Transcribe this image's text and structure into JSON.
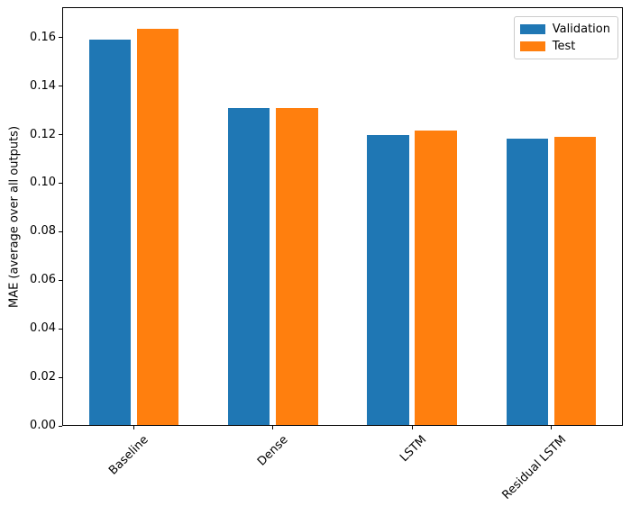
{
  "chart_data": {
    "type": "bar",
    "title": "",
    "xlabel": "",
    "ylabel": "MAE (average over all outputs)",
    "categories": [
      "Baseline",
      "Dense",
      "LSTM",
      "Residual LSTM"
    ],
    "series": [
      {
        "name": "Validation",
        "color": "#1f77b4",
        "values": [
          0.159,
          0.131,
          0.12,
          0.1183
        ]
      },
      {
        "name": "Test",
        "color": "#ff7f0e",
        "values": [
          0.1635,
          0.131,
          0.1215,
          0.1192
        ]
      }
    ],
    "ylim": [
      0,
      0.1725
    ],
    "yticks": [
      0.0,
      0.02,
      0.04,
      0.06,
      0.08,
      0.1,
      0.12,
      0.14,
      0.16
    ],
    "ytick_labels": [
      "0.00",
      "0.02",
      "0.04",
      "0.06",
      "0.08",
      "0.10",
      "0.12",
      "0.14",
      "0.16"
    ],
    "xtick_rotation": 45,
    "grid": false,
    "legend": {
      "position": "upper right",
      "entries": [
        "Validation",
        "Test"
      ]
    }
  }
}
